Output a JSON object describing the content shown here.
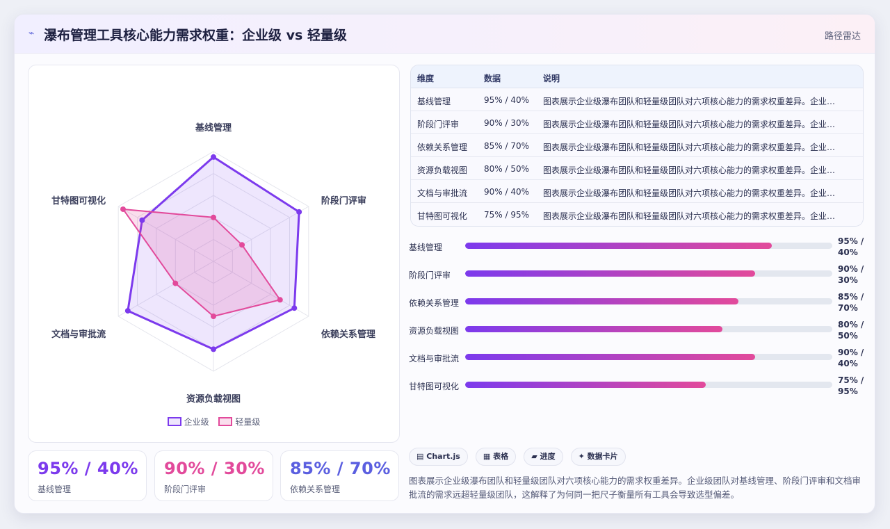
{
  "header": {
    "title": "瀑布管理工具核心能力需求权重：企业级 vs 轻量级",
    "badge": "路径雷达",
    "logo_icon": "signal-icon"
  },
  "colors": {
    "enterprise": "#7c3aed",
    "enterprise_fill": "rgba(124,58,237,0.13)",
    "lightweight": "#e24a9b",
    "lightweight_fill": "rgba(226,74,155,0.18)",
    "stat1": "#7c3aed",
    "stat2": "#e24a9b",
    "stat3": "#5b5fe0"
  },
  "chart_data": {
    "type": "radar",
    "categories": [
      "基线管理",
      "阶段门评审",
      "依赖关系管理",
      "资源负载视图",
      "文档与审批流",
      "甘特图可视化"
    ],
    "series": [
      {
        "name": "企业级",
        "values": [
          95,
          90,
          85,
          80,
          90,
          75
        ]
      },
      {
        "name": "轻量级",
        "values": [
          40,
          30,
          70,
          50,
          40,
          95
        ]
      }
    ],
    "rlim": [
      0,
      100
    ],
    "grid_levels": 5,
    "legend_position": "bottom"
  },
  "stats": [
    {
      "value": "95% / 40%",
      "label": "基线管理"
    },
    {
      "value": "90% / 30%",
      "label": "阶段门评审"
    },
    {
      "value": "85% / 70%",
      "label": "依赖关系管理"
    }
  ],
  "table": {
    "headers": [
      "维度",
      "数据",
      "说明"
    ],
    "rows": [
      [
        "基线管理",
        "95% / 40%",
        "图表展示企业级瀑布团队和轻量级团队对六项核心能力的需求权重差异。企业级团队对基线管理、阶段门评审和文档审批流的需求远超轻量级团队"
      ],
      [
        "阶段门评审",
        "90% / 30%",
        "图表展示企业级瀑布团队和轻量级团队对六项核心能力的需求权重差异。企业级团队对基线管理、阶段门评审和文档审批流的需求远超轻量级团队"
      ],
      [
        "依赖关系管理",
        "85% / 70%",
        "图表展示企业级瀑布团队和轻量级团队对六项核心能力的需求权重差异。企业级团队对基线管理、阶段门评审和文档审批流的需求远超轻量级团队"
      ],
      [
        "资源负载视图",
        "80% / 50%",
        "图表展示企业级瀑布团队和轻量级团队对六项核心能力的需求权重差异。企业级团队对基线管理、阶段门评审和文档审批流的需求远超轻量级团队"
      ],
      [
        "文档与审批流",
        "90% / 40%",
        "图表展示企业级瀑布团队和轻量级团队对六项核心能力的需求权重差异。企业级团队对基线管理、阶段门评审和文档审批流的需求远超轻量级团队"
      ],
      [
        "甘特图可视化",
        "75% / 95%",
        "图表展示企业级瀑布团队和轻量级团队对六项核心能力的需求权重差异。企业级团队对基线管理、阶段门评审和文档审批流的需求远超轻量级团队"
      ]
    ]
  },
  "bars": [
    {
      "label": "基线管理",
      "value_text": "95% / 40%",
      "progress": 0.835
    },
    {
      "label": "阶段门评审",
      "value_text": "90% / 30%",
      "progress": 0.79
    },
    {
      "label": "依赖关系管理",
      "value_text": "85% / 70%",
      "progress": 0.745
    },
    {
      "label": "资源负载视图",
      "value_text": "80% / 50%",
      "progress": 0.7
    },
    {
      "label": "文档与审批流",
      "value_text": "90% / 40%",
      "progress": 0.79
    },
    {
      "label": "甘特图可视化",
      "value_text": "75% / 95%",
      "progress": 0.655
    }
  ],
  "chips": [
    {
      "icon": "chart-icon",
      "glyph": "▤",
      "label": "Chart.js"
    },
    {
      "icon": "table-icon",
      "glyph": "▦",
      "label": "表格"
    },
    {
      "icon": "progress-icon",
      "glyph": "▰",
      "label": "进度"
    },
    {
      "icon": "card-icon",
      "glyph": "✦",
      "label": "数据卡片"
    }
  ],
  "description": "图表展示企业级瀑布团队和轻量级团队对六项核心能力的需求权重差异。企业级团队对基线管理、阶段门评审和文档审批流的需求远超轻量级团队，这解释了为何同一把尺子衡量所有工具会导致选型偏差。"
}
